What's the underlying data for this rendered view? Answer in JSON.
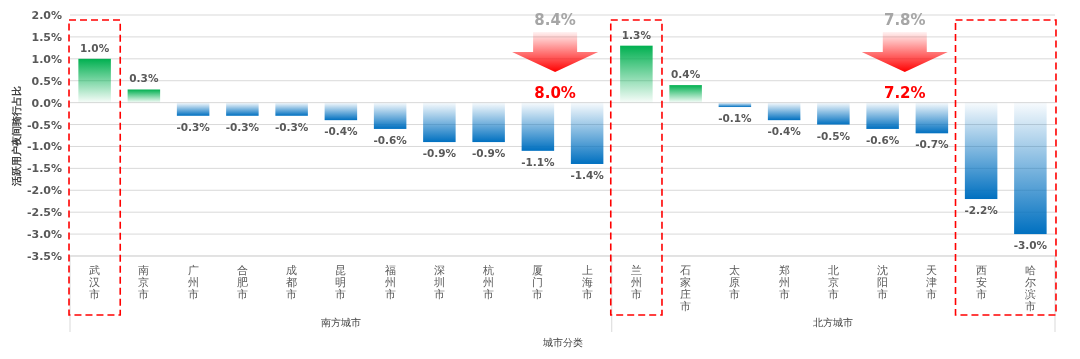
{
  "chart_data": {
    "type": "bar",
    "ylabel": "活跃用户夜间骑行占比",
    "xlabel": "城市分类",
    "categories": [
      "武汉市",
      "南京市",
      "广州市",
      "合肥市",
      "成都市",
      "昆明市",
      "福州市",
      "深圳市",
      "杭州市",
      "厦门市",
      "上海市",
      "兰州市",
      "石家庄市",
      "太原市",
      "郑州市",
      "北京市",
      "沈阳市",
      "天津市",
      "西安市",
      "哈尔滨市"
    ],
    "values": [
      1.0,
      0.3,
      -0.3,
      -0.3,
      -0.3,
      -0.4,
      -0.6,
      -0.9,
      -0.9,
      -1.1,
      -1.4,
      1.3,
      0.4,
      -0.1,
      -0.4,
      -0.5,
      -0.6,
      -0.7,
      -2.2,
      -3.0
    ],
    "value_labels": [
      "1.0%",
      "0.3%",
      "-0.3%",
      "-0.3%",
      "-0.3%",
      "-0.4%",
      "-0.6%",
      "-0.9%",
      "-0.9%",
      "-1.1%",
      "-1.4%",
      "1.3%",
      "0.4%",
      "-0.1%",
      "-0.4%",
      "-0.5%",
      "-0.6%",
      "-0.7%",
      "-2.2%",
      "-3.0%"
    ],
    "colors": [
      "#00b050",
      "#00b050",
      "#0070c0",
      "#0070c0",
      "#0070c0",
      "#0070c0",
      "#0070c0",
      "#0070c0",
      "#0070c0",
      "#0070c0",
      "#0070c0",
      "#00b050",
      "#00b050",
      "#0070c0",
      "#0070c0",
      "#0070c0",
      "#0070c0",
      "#0070c0",
      "#0070c0",
      "#0070c0"
    ],
    "ylim": [
      -3.5,
      2.0
    ],
    "yticks": [
      {
        "value": -3.5,
        "label": "-3.5%"
      },
      {
        "value": -3.0,
        "label": "-3.0%"
      },
      {
        "value": -2.5,
        "label": "-2.5%"
      },
      {
        "value": -2.0,
        "label": "-2.0%"
      },
      {
        "value": -1.5,
        "label": "-1.5%"
      },
      {
        "value": -1.0,
        "label": "-1.0%"
      },
      {
        "value": -0.5,
        "label": "-0.5%"
      },
      {
        "value": 0.0,
        "label": "0.0%"
      },
      {
        "value": 0.5,
        "label": "0.5%"
      },
      {
        "value": 1.0,
        "label": "1.0%"
      },
      {
        "value": 1.5,
        "label": "1.5%"
      },
      {
        "value": 2.0,
        "label": "2.0%"
      }
    ],
    "grid": "y",
    "annotations": [
      "8.4%",
      "8.0%",
      "7.8%",
      "7.2%",
      "南方城市",
      "北方城市"
    ]
  }
}
